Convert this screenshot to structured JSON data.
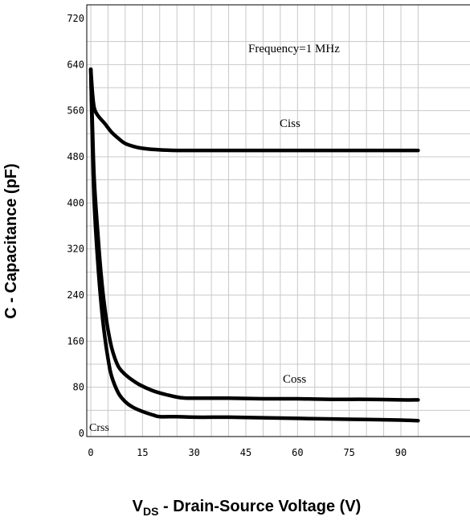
{
  "chart_data": {
    "type": "line",
    "xlabel": {
      "main": "V",
      "sub": "DS",
      "rest": " - Drain-Source Voltage (V)"
    },
    "ylabel": "C - Capacitance (pF)",
    "xlim": [
      0,
      95
    ],
    "ylim": [
      0,
      720
    ],
    "x_ticks": [
      "0",
      "15",
      "30",
      "45",
      "60",
      "75",
      "90"
    ],
    "y_ticks": [
      "0",
      "80",
      "160",
      "240",
      "320",
      "400",
      "480",
      "560",
      "640",
      "720"
    ],
    "grid": true,
    "annotations": {
      "frequency": "Frequency=1 MHz"
    },
    "series": [
      {
        "name": "Ciss",
        "x": [
          0,
          0.5,
          1,
          2,
          4,
          6,
          8,
          10,
          13,
          16,
          20,
          25,
          30,
          40,
          50,
          60,
          70,
          80,
          90,
          95
        ],
        "y": [
          632,
          590,
          565,
          552,
          538,
          523,
          512,
          503,
          497,
          494,
          492,
          491,
          491,
          491,
          491,
          491,
          491,
          491,
          491,
          491
        ]
      },
      {
        "name": "Coss",
        "x": [
          0,
          0.5,
          1,
          2,
          3,
          4,
          5,
          6,
          7,
          8,
          9,
          11,
          14,
          18,
          22,
          26,
          30,
          40,
          50,
          60,
          70,
          80,
          90,
          95
        ],
        "y": [
          632,
          530,
          440,
          350,
          275,
          220,
          180,
          150,
          130,
          116,
          108,
          97,
          85,
          74,
          67,
          62,
          61,
          61,
          60,
          60,
          59,
          59,
          58,
          58
        ]
      },
      {
        "name": "Crss",
        "x": [
          0,
          0.5,
          1,
          2,
          3,
          4,
          5,
          6,
          8,
          10,
          12,
          15,
          18,
          20,
          25,
          30,
          40,
          50,
          60,
          70,
          80,
          90,
          95
        ],
        "y": [
          632,
          500,
          400,
          300,
          225,
          170,
          130,
          100,
          70,
          55,
          46,
          38,
          32,
          29,
          29,
          28,
          28,
          27,
          26,
          25,
          24,
          23,
          22
        ]
      }
    ]
  }
}
